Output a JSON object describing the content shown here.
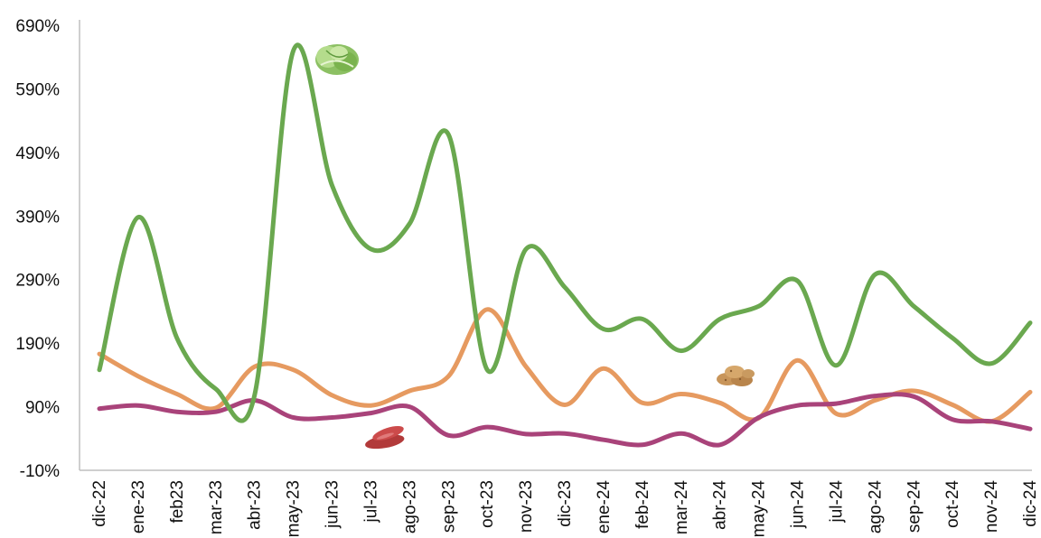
{
  "chart_data": {
    "type": "line",
    "title": "",
    "xlabel": "",
    "ylabel": "",
    "ylim": [
      -10,
      690
    ],
    "yticks": [
      -10,
      90,
      190,
      290,
      390,
      490,
      590,
      690
    ],
    "ytick_labels": [
      "-10%",
      "90%",
      "190%",
      "290%",
      "390%",
      "490%",
      "590%",
      "690%"
    ],
    "categories": [
      "dic-22",
      "ene-23",
      "feb23",
      "mar-23",
      "abr-23",
      "may-23",
      "jun-23",
      "jul-23",
      "ago-23",
      "sep-23",
      "oct-23",
      "nov-23",
      "dic-23",
      "ene-24",
      "feb-24",
      "mar-24",
      "abr-24",
      "may-24",
      "jun-24",
      "jul-24",
      "ago-24",
      "sep-24",
      "oct-24",
      "nov-24",
      "dic-24"
    ],
    "grid": false,
    "legend": "none",
    "series": [
      {
        "icon": "lettuce-icon",
        "color": "#6aa84f",
        "values": [
          148,
          388,
          198,
          118,
          108,
          650,
          438,
          338,
          378,
          518,
          148,
          338,
          278,
          212,
          228,
          178,
          228,
          248,
          288,
          155,
          298,
          248,
          198,
          158,
          222
        ]
      },
      {
        "icon": "potatoes-icon",
        "color": "#e69a60",
        "values": [
          173,
          138,
          110,
          88,
          153,
          148,
          108,
          92,
          115,
          138,
          243,
          153,
          93,
          150,
          96,
          110,
          96,
          72,
          163,
          79,
          100,
          115,
          93,
          67,
          113
        ]
      },
      {
        "icon": "sweet-potato-icon",
        "color": "#a9437a",
        "values": [
          87,
          92,
          82,
          82,
          100,
          73,
          73,
          80,
          90,
          45,
          58,
          47,
          48,
          38,
          30,
          48,
          30,
          73,
          92,
          95,
          107,
          106,
          70,
          67,
          55
        ]
      }
    ]
  }
}
